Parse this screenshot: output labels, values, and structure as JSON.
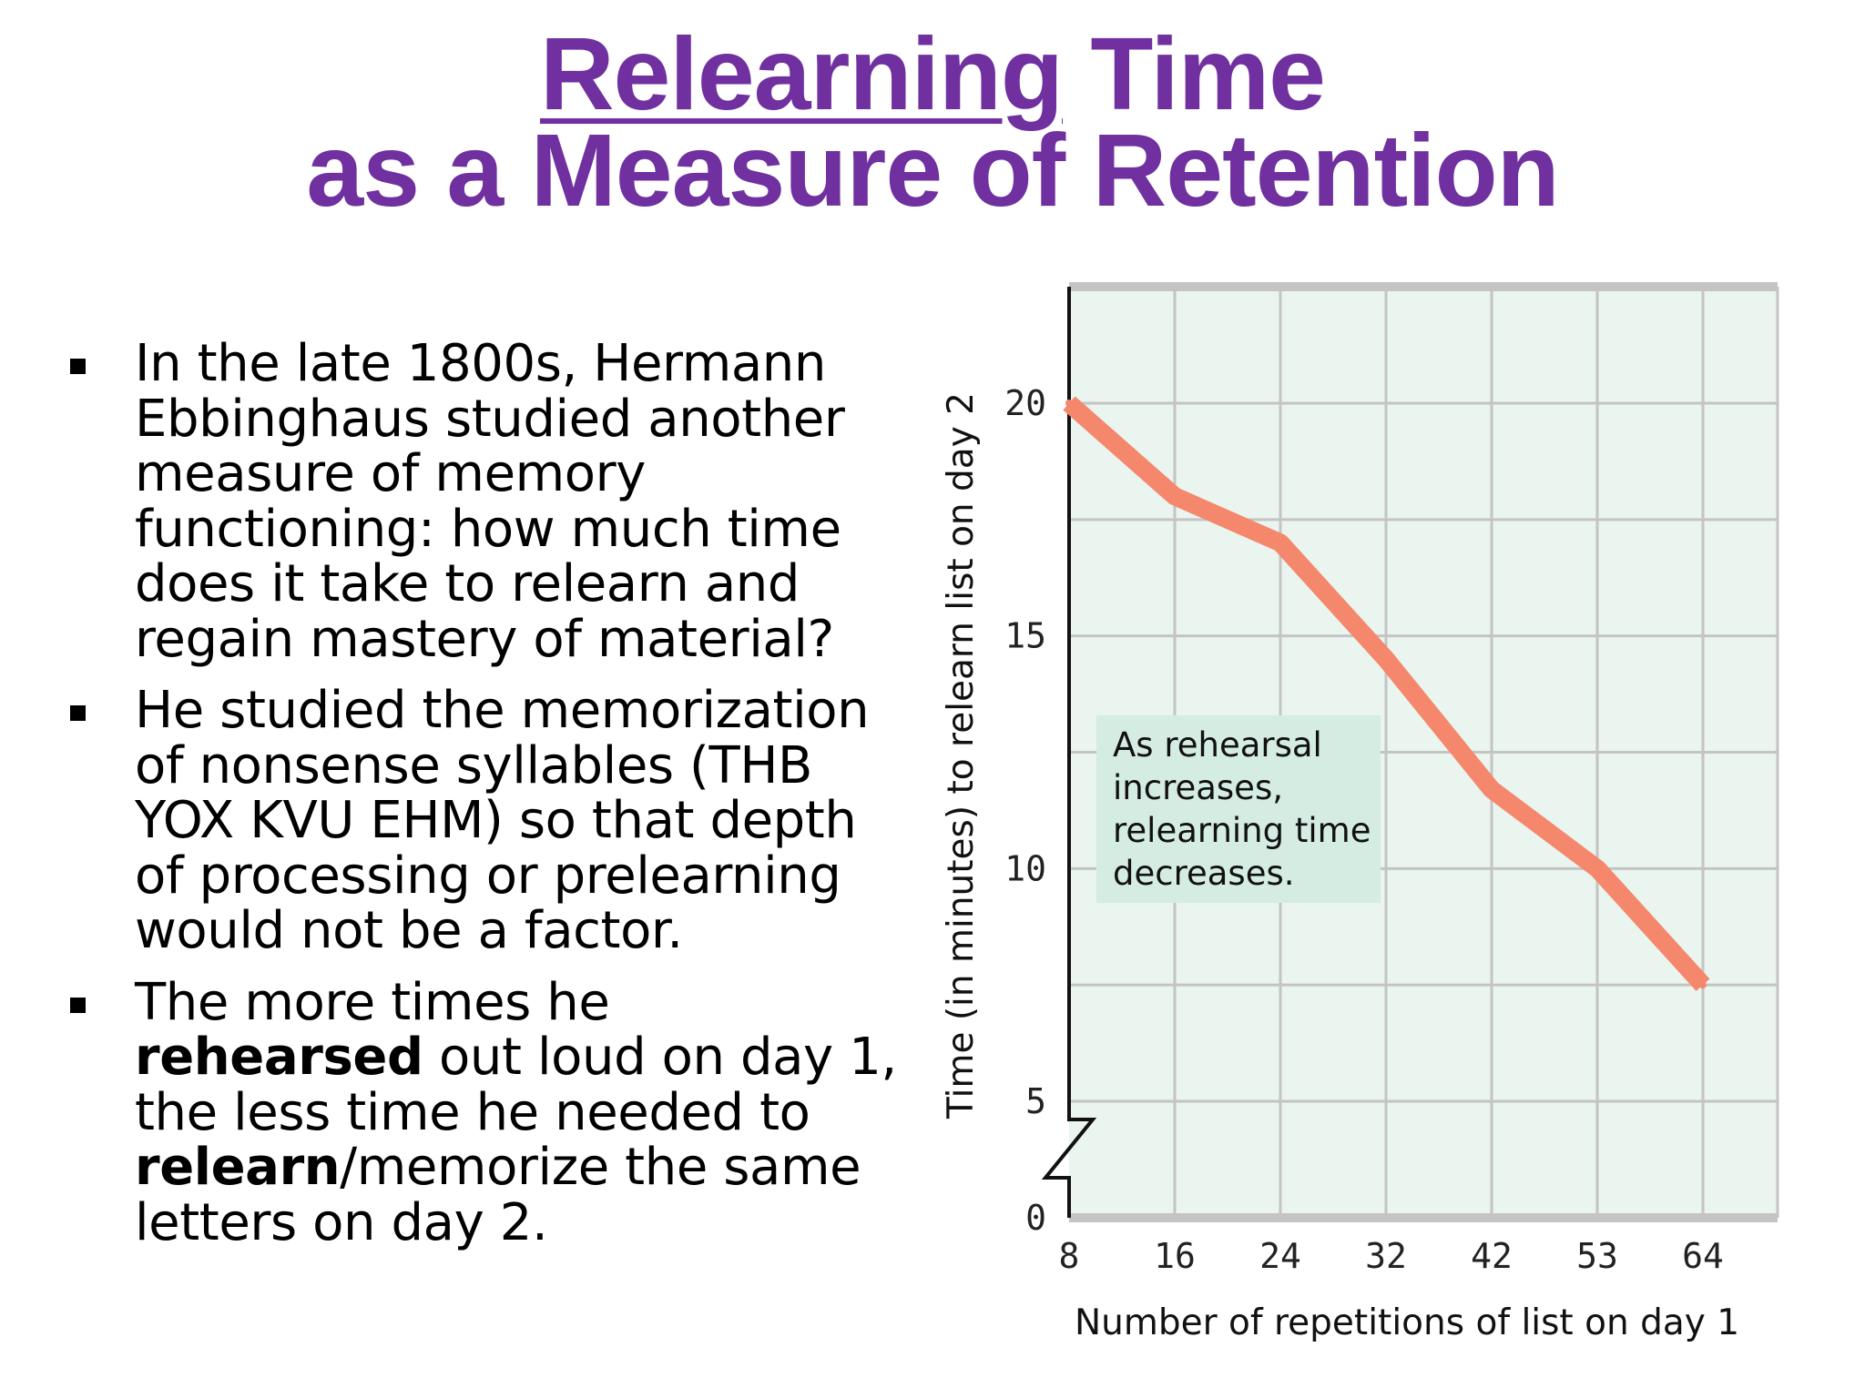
{
  "title": {
    "line1_underlined": "Relearning",
    "line1_rest": " Time",
    "line2": "as a Measure of Retention"
  },
  "bullets": [
    {
      "text": "In the late 1800s, Hermann Ebbinghaus studied another measure of memory functioning: how much time does it take to relearn and regain mastery of material?"
    },
    {
      "text": "He studied the memorization of nonsense syllables (THB YOX KVU EHM) so that depth of processing or prelearning would not be a factor."
    },
    {
      "part1": "The more times he ",
      "bold1": "rehearsed",
      "part2": " out loud on day 1, the less time he needed to ",
      "bold2": "relearn",
      "part3": "/memorize the same letters on day 2."
    }
  ],
  "chart_data": {
    "type": "line",
    "categories": [
      "8",
      "16",
      "24",
      "32",
      "42",
      "53",
      "64"
    ],
    "values": [
      20,
      18,
      17,
      14.5,
      11.7,
      10,
      7.5
    ],
    "xlabel": "Number of repetitions of list on day 1",
    "ylabel": "Time (in minutes) to relearn list on day 2",
    "y_ticks": [
      0,
      5,
      10,
      15,
      20
    ],
    "ylim": [
      0,
      22
    ],
    "axis_break": true,
    "grid": true,
    "annotation": [
      "As rehearsal",
      "increases,",
      "relearning time",
      "decreases."
    ],
    "colors": {
      "line": "#f4876c",
      "plot_background": "#e9f5ee",
      "grid": "#c4c4c4",
      "annotation_background": "#d5ece3",
      "axis": "#111111"
    }
  }
}
